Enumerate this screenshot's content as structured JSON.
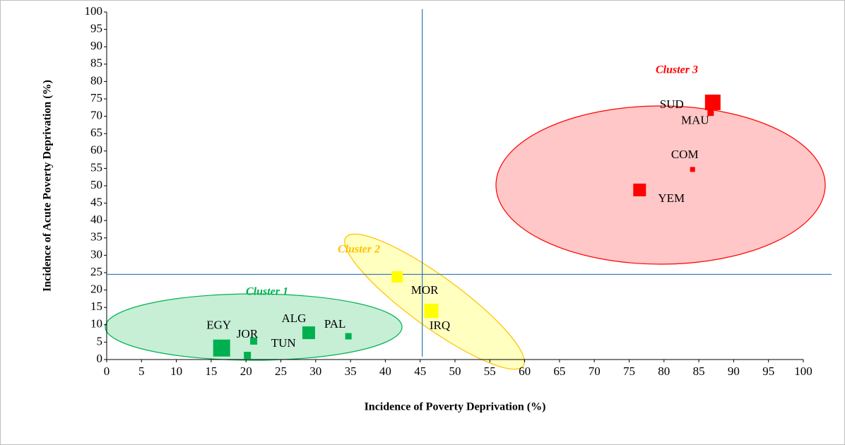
{
  "chart_data": {
    "type": "scatter",
    "x_label": "Incidence of Poverty Deprivation (%)",
    "y_label": "Incidence of Acute Poverty Deprivation (%)",
    "xlim": [
      0,
      100
    ],
    "ylim": [
      0,
      100
    ],
    "xticks": [
      0,
      5,
      10,
      15,
      20,
      25,
      30,
      35,
      40,
      45,
      50,
      55,
      60,
      65,
      70,
      75,
      80,
      85,
      90,
      95,
      100
    ],
    "yticks": [
      0,
      5,
      10,
      15,
      20,
      25,
      30,
      35,
      40,
      45,
      50,
      55,
      60,
      65,
      70,
      75,
      80,
      85,
      90,
      95,
      100
    ],
    "reference_lines": {
      "x": 45.3,
      "y": 24.5
    },
    "series": [
      {
        "name": "Cluster 1",
        "color": "#00b050",
        "labels": [
          "EGY",
          "JOR",
          "TUN",
          "ALG",
          "PAL"
        ],
        "x": [
          16.5,
          21.1,
          20.2,
          29.0,
          34.7
        ],
        "y": [
          3.3,
          5.3,
          1.2,
          7.7,
          6.7
        ],
        "sizes": [
          24,
          10,
          10,
          18,
          9
        ]
      },
      {
        "name": "Cluster 2",
        "color": "#ffff00",
        "labels": [
          "MOR",
          "IRQ"
        ],
        "x": [
          41.7,
          46.6
        ],
        "y": [
          23.8,
          14.0
        ],
        "sizes": [
          16,
          20
        ]
      },
      {
        "name": "Cluster 3",
        "color": "#ff0000",
        "labels": [
          "SUD",
          "MAU",
          "COM",
          "YEM"
        ],
        "x": [
          87.0,
          86.7,
          84.1,
          76.5
        ],
        "y": [
          74.0,
          71.0,
          54.7,
          48.8
        ],
        "sizes": [
          22,
          9,
          7,
          18
        ]
      }
    ]
  }
}
